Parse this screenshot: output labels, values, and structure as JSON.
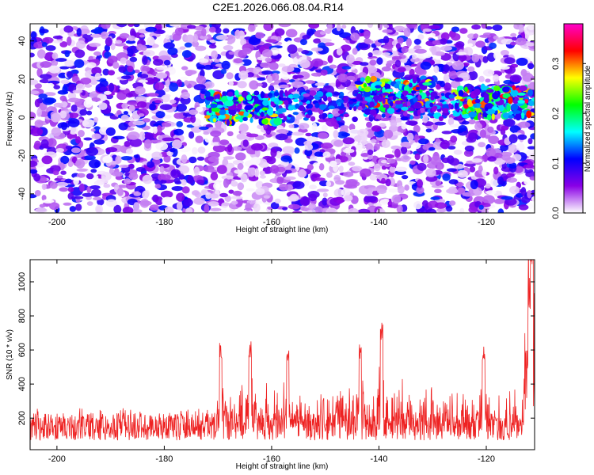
{
  "page": {
    "title": "C2E1.2026.066.08.04.R14"
  },
  "chart_data": [
    {
      "type": "heatmap",
      "xlabel": "Height of straight line (km)",
      "ylabel": "Frequency (Hz)",
      "xlim": [
        -205,
        -111
      ],
      "ylim": [
        -50,
        49
      ],
      "xticks": [
        -200,
        -180,
        -160,
        -140,
        -120
      ],
      "yticks": [
        -40,
        -20,
        0,
        20,
        40
      ],
      "colorbar": {
        "label": "Normalized spectral amplitude",
        "range": [
          0.0,
          0.38
        ],
        "ticks": [
          0.0,
          0.1,
          0.2,
          0.3
        ],
        "colors": [
          "#ffffff",
          "#8a00e6",
          "#0000ff",
          "#00ffff",
          "#00ff00",
          "#ffff00",
          "#ff0000",
          "#ff00cc"
        ]
      },
      "band": {
        "center_hz": 5,
        "segments": [
          {
            "x": [
              -172,
              -158
            ],
            "y_center": 5,
            "max_amplitude": 0.32
          },
          {
            "x": [
              -144,
              -130
            ],
            "y_center": 12,
            "max_amplitude": 0.33
          },
          {
            "x": [
              -126,
              -111
            ],
            "y_center": 8,
            "max_amplitude": 0.36
          }
        ]
      },
      "background_amplitude_max": 0.12,
      "grid": false,
      "legend": "none"
    },
    {
      "type": "line",
      "xlabel": "Height of straight line (km)",
      "ylabel": "SNR (10 * v/v)",
      "xlim": [
        -205,
        -111
      ],
      "ylim": [
        15,
        1130
      ],
      "xticks": [
        -200,
        -180,
        -160,
        -140,
        -120
      ],
      "yticks": [
        200,
        400,
        600,
        800,
        1000
      ],
      "color": "#ee2222",
      "baseline": {
        "from": 70,
        "to": 260
      },
      "peaks": [
        {
          "x": -169.5,
          "y": 650
        },
        {
          "x": -164.0,
          "y": 655
        },
        {
          "x": -157.0,
          "y": 610
        },
        {
          "x": -143.5,
          "y": 645
        },
        {
          "x": -139.5,
          "y": 760
        },
        {
          "x": -120.5,
          "y": 620
        },
        {
          "x": -112.0,
          "y": 880
        },
        {
          "x": -111.5,
          "y": 1130
        }
      ],
      "grid": false,
      "legend": "none"
    }
  ]
}
